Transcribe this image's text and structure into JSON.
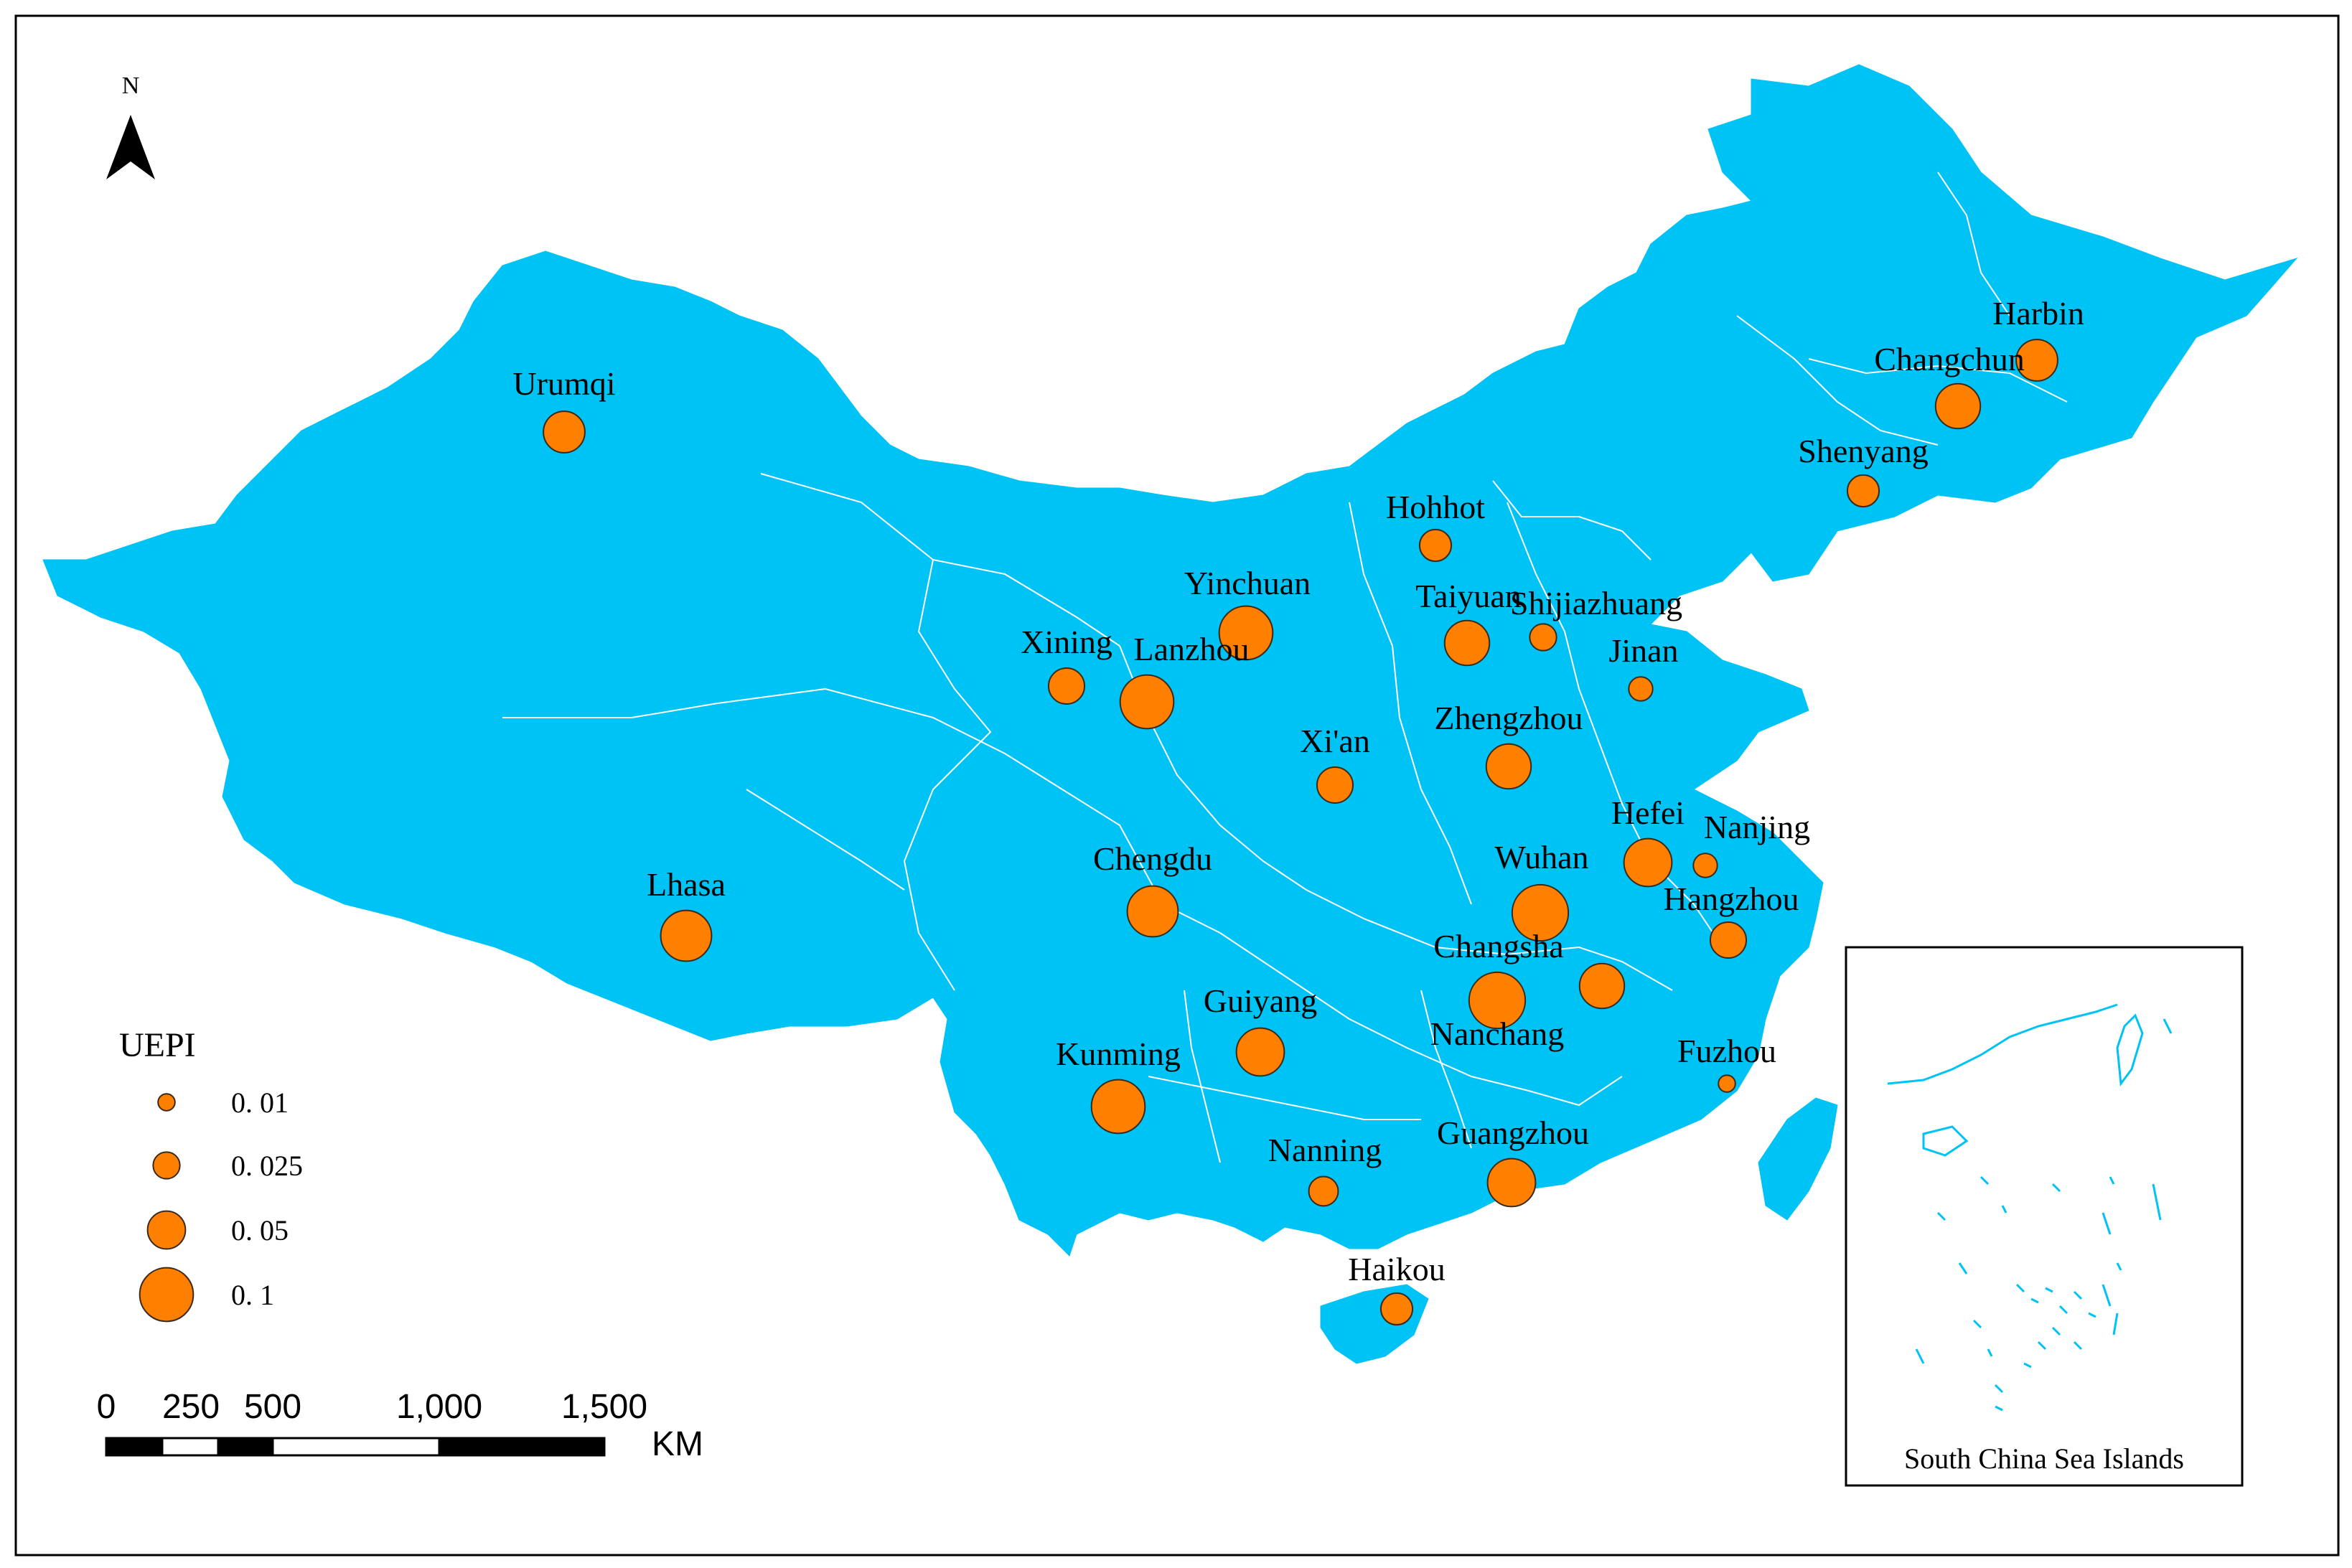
{
  "colors": {
    "land": "#00C3F5",
    "boundary": "#ffffff",
    "marker_fill": "#FF7F00",
    "marker_stroke": "#3a2a1a",
    "frame": "#000000"
  },
  "north_arrow": {
    "label": "N"
  },
  "legend": {
    "title": "UEPI",
    "items": [
      {
        "label": "0. 01",
        "value": 0.01
      },
      {
        "label": "0. 025",
        "value": 0.025
      },
      {
        "label": "0. 05",
        "value": 0.05
      },
      {
        "label": "0. 1",
        "value": 0.1
      }
    ]
  },
  "scale_bar": {
    "ticks": [
      "0",
      "250",
      "500",
      "1,000",
      "1,500"
    ],
    "unit": "KM"
  },
  "inset": {
    "caption": "South China Sea Islands"
  },
  "cities": [
    {
      "name": "Harbin",
      "uepi": 0.06
    },
    {
      "name": "Changchun",
      "uepi": 0.07
    },
    {
      "name": "Shenyang",
      "uepi": 0.035
    },
    {
      "name": "Urumqi",
      "uepi": 0.06
    },
    {
      "name": "Hohhot",
      "uepi": 0.035
    },
    {
      "name": "Yinchuan",
      "uepi": 0.1
    },
    {
      "name": "Taiyuan",
      "uepi": 0.07
    },
    {
      "name": "Shijiazhuang",
      "uepi": 0.025
    },
    {
      "name": "Xining",
      "uepi": 0.045
    },
    {
      "name": "Lanzhou",
      "uepi": 0.1
    },
    {
      "name": "Jinan",
      "uepi": 0.02
    },
    {
      "name": "Xi'an",
      "uepi": 0.045
    },
    {
      "name": "Zhengzhou",
      "uepi": 0.07
    },
    {
      "name": "Hefei",
      "uepi": 0.08
    },
    {
      "name": "Nanjing",
      "uepi": 0.02
    },
    {
      "name": "Wuhan",
      "uepi": 0.11
    },
    {
      "name": "Hangzhou",
      "uepi": 0.045
    },
    {
      "name": "Chengdu",
      "uepi": 0.09
    },
    {
      "name": "Lhasa",
      "uepi": 0.09
    },
    {
      "name": "Changsha",
      "uepi": 0.11
    },
    {
      "name": "Nanchang",
      "uepi": 0.07
    },
    {
      "name": "Guiyang",
      "uepi": 0.08
    },
    {
      "name": "Kunming",
      "uepi": 0.1
    },
    {
      "name": "Fuzhou",
      "uepi": 0.01
    },
    {
      "name": "Nanning",
      "uepi": 0.03
    },
    {
      "name": "Guangzhou",
      "uepi": 0.08
    },
    {
      "name": "Haikou",
      "uepi": 0.035
    }
  ]
}
